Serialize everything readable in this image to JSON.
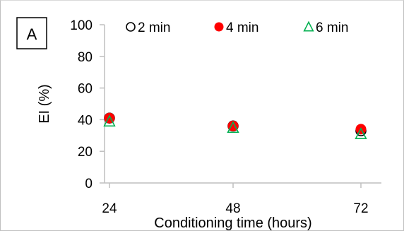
{
  "chart_data": {
    "type": "scatter",
    "panel_label": "A",
    "title": "",
    "xlabel": "Conditioning time (hours)",
    "ylabel": "EI (%)",
    "x": [
      24,
      48,
      72
    ],
    "x_tick_labels": [
      "24",
      "48",
      "72"
    ],
    "y_tick_labels": [
      "0",
      "20",
      "40",
      "60",
      "80",
      "100"
    ],
    "ylim": [
      0,
      100
    ],
    "yticks": [
      0,
      20,
      40,
      60,
      80,
      100
    ],
    "grid": false,
    "legend_position": "top",
    "series": [
      {
        "name": "2 min",
        "marker": "open-circle",
        "color": "#000000",
        "values": [
          41,
          36,
          33
        ]
      },
      {
        "name": "4 min",
        "marker": "filled-circle",
        "color": "#ff0000",
        "values": [
          41,
          36,
          34
        ]
      },
      {
        "name": "6 min",
        "marker": "open-triangle",
        "color": "#00b050",
        "values": [
          39,
          35,
          31
        ]
      }
    ]
  }
}
